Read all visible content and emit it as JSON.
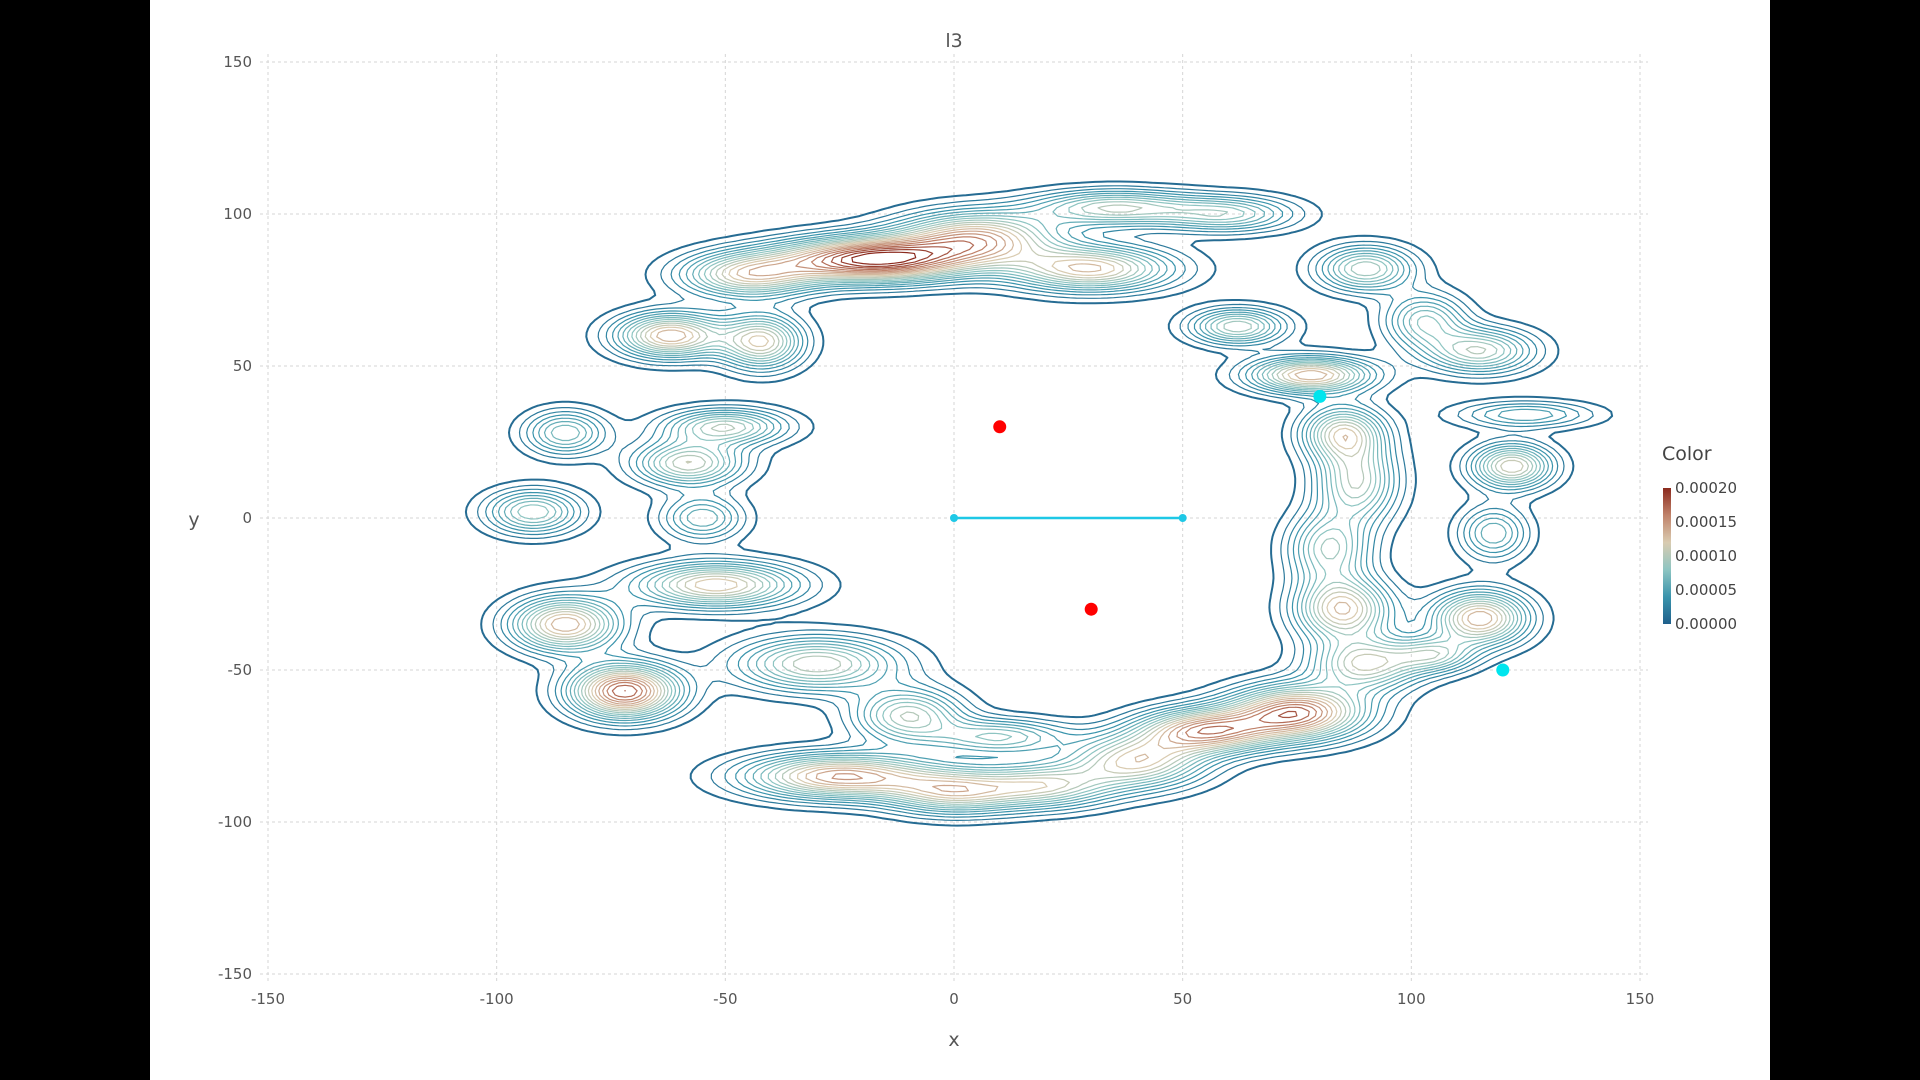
{
  "chart_data": {
    "type": "contour",
    "title": "l3",
    "xlabel": "x",
    "ylabel": "y",
    "xlim": [
      -150,
      150
    ],
    "ylim": [
      -150,
      150
    ],
    "xticks": [
      -150,
      -100,
      -50,
      0,
      50,
      100,
      150
    ],
    "yticks": [
      -150,
      -100,
      -50,
      0,
      50,
      100,
      150
    ],
    "grid": true,
    "colorbar": {
      "title": "Color",
      "ticks": [
        "0.00000",
        "0.00005",
        "0.00010",
        "0.00015",
        "0.00020"
      ],
      "range": [
        0,
        0.0002
      ],
      "colors": [
        "#1f5f8b",
        "#3a94ac",
        "#8ec5c2",
        "#d9cbb0",
        "#c0826a",
        "#8b2a1e"
      ]
    },
    "density_blobs": [
      {
        "x": -18,
        "y": 85,
        "sx": 14,
        "sy": 5,
        "peak": 0.0002
      },
      {
        "x": -45,
        "y": 80,
        "sx": 10,
        "sy": 5,
        "peak": 0.00012
      },
      {
        "x": 5,
        "y": 92,
        "sx": 12,
        "sy": 6,
        "peak": 0.00014
      },
      {
        "x": 30,
        "y": 82,
        "sx": 12,
        "sy": 5,
        "peak": 0.00013
      },
      {
        "x": 35,
        "y": 102,
        "sx": 12,
        "sy": 4,
        "peak": 0.0001
      },
      {
        "x": 60,
        "y": 100,
        "sx": 10,
        "sy": 4,
        "peak": 8e-05
      },
      {
        "x": 90,
        "y": 82,
        "sx": 7,
        "sy": 5,
        "peak": 0.0001
      },
      {
        "x": 103,
        "y": 65,
        "sx": 6,
        "sy": 6,
        "peak": 8e-05
      },
      {
        "x": 115,
        "y": 55,
        "sx": 8,
        "sy": 5,
        "peak": 0.0001
      },
      {
        "x": -62,
        "y": 60,
        "sx": 8,
        "sy": 5,
        "peak": 0.00014
      },
      {
        "x": -42,
        "y": 58,
        "sx": 6,
        "sy": 6,
        "peak": 0.00012
      },
      {
        "x": -85,
        "y": 28,
        "sx": 6,
        "sy": 5,
        "peak": 8e-05
      },
      {
        "x": -92,
        "y": 2,
        "sx": 7,
        "sy": 5,
        "peak": 9e-05
      },
      {
        "x": -50,
        "y": 30,
        "sx": 9,
        "sy": 4,
        "peak": 0.0001
      },
      {
        "x": -58,
        "y": 18,
        "sx": 8,
        "sy": 5,
        "peak": 0.00011
      },
      {
        "x": -55,
        "y": 0,
        "sx": 6,
        "sy": 5,
        "peak": 7e-05
      },
      {
        "x": -52,
        "y": -22,
        "sx": 12,
        "sy": 5,
        "peak": 0.00013
      },
      {
        "x": -85,
        "y": -35,
        "sx": 8,
        "sy": 6,
        "peak": 0.00014
      },
      {
        "x": -72,
        "y": -57,
        "sx": 8,
        "sy": 6,
        "peak": 0.00018
      },
      {
        "x": -30,
        "y": -48,
        "sx": 12,
        "sy": 6,
        "peak": 0.00011
      },
      {
        "x": -10,
        "y": -65,
        "sx": 8,
        "sy": 6,
        "peak": 0.0001
      },
      {
        "x": -25,
        "y": -85,
        "sx": 14,
        "sy": 5,
        "peak": 0.00015
      },
      {
        "x": 0,
        "y": -90,
        "sx": 10,
        "sy": 5,
        "peak": 0.00011
      },
      {
        "x": 20,
        "y": -88,
        "sx": 10,
        "sy": 5,
        "peak": 0.0001
      },
      {
        "x": 10,
        "y": -72,
        "sx": 10,
        "sy": 4,
        "peak": 8e-05
      },
      {
        "x": 40,
        "y": -80,
        "sx": 10,
        "sy": 6,
        "peak": 0.00012
      },
      {
        "x": 55,
        "y": -70,
        "sx": 10,
        "sy": 5,
        "peak": 0.00015
      },
      {
        "x": 75,
        "y": -64,
        "sx": 10,
        "sy": 6,
        "peak": 0.00017
      },
      {
        "x": 90,
        "y": -48,
        "sx": 8,
        "sy": 6,
        "peak": 0.00011
      },
      {
        "x": 85,
        "y": -30,
        "sx": 7,
        "sy": 7,
        "peak": 0.00013
      },
      {
        "x": 82,
        "y": -10,
        "sx": 6,
        "sy": 8,
        "peak": 9e-05
      },
      {
        "x": 88,
        "y": 12,
        "sx": 6,
        "sy": 9,
        "peak": 0.0001
      },
      {
        "x": 85,
        "y": 28,
        "sx": 6,
        "sy": 6,
        "peak": 0.00011
      },
      {
        "x": 78,
        "y": 47,
        "sx": 9,
        "sy": 4,
        "peak": 0.00014
      },
      {
        "x": 62,
        "y": 63,
        "sx": 7,
        "sy": 4,
        "peak": 0.0001
      },
      {
        "x": 115,
        "y": -33,
        "sx": 7,
        "sy": 6,
        "peak": 0.00014
      },
      {
        "x": 105,
        "y": -45,
        "sx": 6,
        "sy": 4,
        "peak": 8e-05
      },
      {
        "x": 122,
        "y": 17,
        "sx": 6,
        "sy": 5,
        "peak": 0.00012
      },
      {
        "x": 125,
        "y": 34,
        "sx": 10,
        "sy": 3,
        "peak": 6e-05
      },
      {
        "x": 118,
        "y": -5,
        "sx": 5,
        "sy": 6,
        "peak": 7e-05
      }
    ],
    "points": [
      {
        "x": 10,
        "y": 30,
        "color": "#ff0000"
      },
      {
        "x": 30,
        "y": -30,
        "color": "#ff0000"
      },
      {
        "x": 80,
        "y": 40,
        "color": "#00e5ee"
      },
      {
        "x": 120,
        "y": -50,
        "color": "#00e5ee"
      }
    ],
    "segment": {
      "x": [
        0,
        50
      ],
      "y": [
        0,
        0
      ],
      "color": "#1ec8e6"
    }
  }
}
